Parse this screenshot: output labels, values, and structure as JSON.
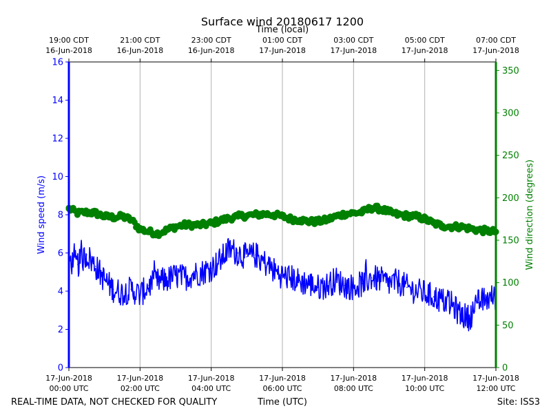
{
  "chart_data": {
    "type": "line",
    "title": "Surface wind 20180617 1200",
    "top_axis_label": "Time (local)",
    "xlabel": "Time (UTC)",
    "ylabel_left": "Wind speed (m/s)",
    "ylabel_right": "Wind direction (degrees)",
    "footer_left": "REAL-TIME DATA, NOT CHECKED FOR QUALITY",
    "footer_right": "Site: ISS3",
    "xlim_hours": [
      0,
      12
    ],
    "ylim_left": [
      0,
      16
    ],
    "ylim_right": [
      0,
      360
    ],
    "left_ticks": [
      0,
      2,
      4,
      6,
      8,
      10,
      12,
      14,
      16
    ],
    "right_ticks": [
      0,
      50,
      100,
      150,
      200,
      250,
      300,
      350
    ],
    "grid": "vertical",
    "colors": {
      "speed": "#0000ff",
      "direction": "#008000",
      "grid": "#b0b0b0",
      "text": "#000000"
    },
    "bottom_ticks": [
      {
        "hour": 0,
        "line1": "17-Jun-2018",
        "line2": "00:00 UTC"
      },
      {
        "hour": 2,
        "line1": "17-Jun-2018",
        "line2": "02:00 UTC"
      },
      {
        "hour": 4,
        "line1": "17-Jun-2018",
        "line2": "04:00 UTC"
      },
      {
        "hour": 6,
        "line1": "17-Jun-2018",
        "line2": "06:00 UTC"
      },
      {
        "hour": 8,
        "line1": "17-Jun-2018",
        "line2": "08:00 UTC"
      },
      {
        "hour": 10,
        "line1": "17-Jun-2018",
        "line2": "10:00 UTC"
      },
      {
        "hour": 12,
        "line1": "17-Jun-2018",
        "line2": "12:00 UTC"
      }
    ],
    "top_ticks": [
      {
        "hour": 0,
        "line1": "19:00 CDT",
        "line2": "16-Jun-2018"
      },
      {
        "hour": 2,
        "line1": "21:00 CDT",
        "line2": "16-Jun-2018"
      },
      {
        "hour": 4,
        "line1": "23:00 CDT",
        "line2": "16-Jun-2018"
      },
      {
        "hour": 6,
        "line1": "01:00 CDT",
        "line2": "17-Jun-2018"
      },
      {
        "hour": 8,
        "line1": "03:00 CDT",
        "line2": "17-Jun-2018"
      },
      {
        "hour": 10,
        "line1": "05:00 CDT",
        "line2": "17-Jun-2018"
      },
      {
        "hour": 12,
        "line1": "07:00 CDT",
        "line2": "17-Jun-2018"
      }
    ],
    "series": [
      {
        "name": "Wind speed",
        "axis": "left",
        "units": "m/s",
        "x_hours": [
          0,
          0.25,
          0.5,
          0.75,
          1,
          1.25,
          1.5,
          1.75,
          2,
          2.25,
          2.5,
          2.75,
          3,
          3.25,
          3.5,
          3.75,
          4,
          4.25,
          4.5,
          4.75,
          5,
          5.25,
          5.5,
          5.75,
          6,
          6.25,
          6.5,
          6.75,
          7,
          7.25,
          7.5,
          7.75,
          8,
          8.25,
          8.5,
          8.75,
          9,
          9.25,
          9.5,
          9.75,
          10,
          10.25,
          10.5,
          10.75,
          11,
          11.25,
          11.5,
          11.75,
          12
        ],
        "values": [
          5.6,
          5.4,
          5.9,
          5.3,
          4.6,
          4.1,
          3.9,
          4.1,
          3.8,
          4.3,
          4.5,
          4.6,
          4.8,
          4.7,
          4.9,
          5.0,
          5.2,
          5.6,
          6.2,
          6.0,
          5.8,
          5.9,
          5.5,
          5.1,
          4.8,
          4.7,
          4.5,
          4.4,
          4.2,
          4.3,
          4.6,
          4.3,
          4.2,
          4.4,
          4.7,
          4.6,
          4.4,
          4.5,
          4.2,
          4.0,
          3.9,
          3.7,
          3.5,
          3.3,
          2.8,
          2.6,
          3.4,
          3.6,
          3.7
        ]
      },
      {
        "name": "Wind direction",
        "axis": "right",
        "units": "degrees",
        "x_hours": [
          0,
          0.25,
          0.5,
          0.75,
          1,
          1.25,
          1.5,
          1.75,
          2,
          2.25,
          2.5,
          2.75,
          3,
          3.25,
          3.5,
          3.75,
          4,
          4.25,
          4.5,
          4.75,
          5,
          5.25,
          5.5,
          5.75,
          6,
          6.25,
          6.5,
          6.75,
          7,
          7.25,
          7.5,
          7.75,
          8,
          8.25,
          8.5,
          8.75,
          9,
          9.25,
          9.5,
          9.75,
          10,
          10.25,
          10.5,
          10.75,
          11,
          11.25,
          11.5,
          11.75,
          12
        ],
        "values": [
          187,
          182,
          183,
          182,
          178,
          177,
          178,
          174,
          163,
          160,
          158,
          162,
          166,
          168,
          168,
          168,
          170,
          173,
          176,
          178,
          179,
          180,
          181,
          180,
          178,
          175,
          174,
          172,
          172,
          174,
          178,
          181,
          182,
          183,
          188,
          187,
          183,
          180,
          179,
          178,
          175,
          170,
          167,
          166,
          166,
          164,
          162,
          161,
          160
        ]
      }
    ]
  }
}
